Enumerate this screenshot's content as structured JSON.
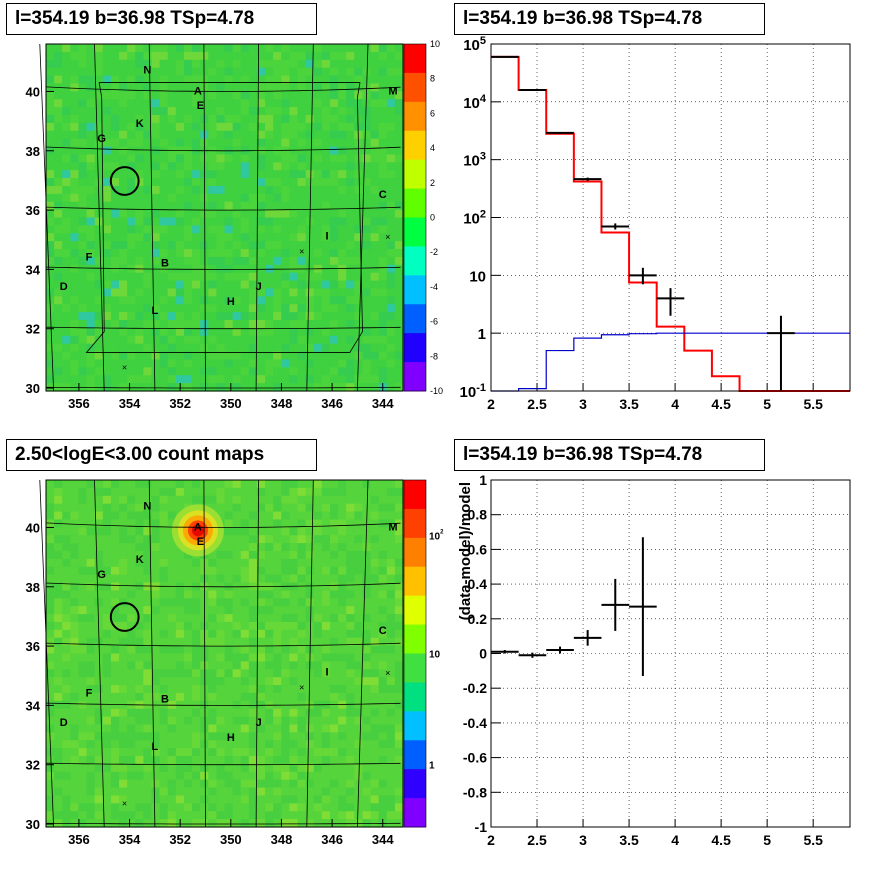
{
  "panels": {
    "tl": {
      "title": "l=354.19 b=36.98 TSp=4.78"
    },
    "tr": {
      "title": "l=354.19 b=36.98 TSp=4.78"
    },
    "bl": {
      "title": "2.50<logE<3.00 count maps"
    },
    "br": {
      "title": "l=354.19 b=36.98 TSp=4.78"
    }
  },
  "colors": {
    "map_bg": "#3fd13f",
    "data": "#000000",
    "model": "#ff0000",
    "source": "#0000cc"
  },
  "chart_data": [
    {
      "type": "heatmap",
      "name": "residual significance map",
      "x_ticks": [
        "356",
        "354",
        "352",
        "350",
        "348",
        "346",
        "344"
      ],
      "y_ticks": [
        "30",
        "32",
        "34",
        "36",
        "38",
        "40"
      ],
      "xlim": [
        357.3,
        343.2
      ],
      "ylim": [
        29.9,
        41.6
      ],
      "colorbar_ticks": [
        "10",
        "8",
        "6",
        "4",
        "2",
        "0",
        "-2",
        "-4",
        "-6",
        "-8",
        "-10"
      ],
      "colorbar_range": [
        -10,
        10
      ],
      "labels": [
        {
          "t": "N",
          "l": 353.3,
          "b": 40.6
        },
        {
          "t": "A",
          "l": 351.3,
          "b": 39.9
        },
        {
          "t": "E",
          "l": 351.2,
          "b": 39.4
        },
        {
          "t": "K",
          "l": 353.6,
          "b": 38.8
        },
        {
          "t": "G",
          "l": 355.1,
          "b": 38.3
        },
        {
          "t": "M",
          "l": 343.6,
          "b": 39.9
        },
        {
          "t": "C",
          "l": 344.0,
          "b": 36.4
        },
        {
          "t": "I",
          "l": 346.2,
          "b": 35.0
        },
        {
          "t": "F",
          "l": 355.6,
          "b": 34.3
        },
        {
          "t": "B",
          "l": 352.6,
          "b": 34.1
        },
        {
          "t": "D",
          "l": 356.6,
          "b": 33.3
        },
        {
          "t": "J",
          "l": 348.9,
          "b": 33.3
        },
        {
          "t": "H",
          "l": 350.0,
          "b": 32.8
        },
        {
          "t": "L",
          "l": 353.0,
          "b": 32.5
        }
      ],
      "crosses": [
        {
          "l": 347.2,
          "b": 34.6
        },
        {
          "l": 343.8,
          "b": 35.1
        },
        {
          "l": 354.2,
          "b": 30.7
        }
      ],
      "target_circle": {
        "l": 354.19,
        "b": 36.98,
        "r_deg": 0.55
      }
    },
    {
      "type": "line",
      "name": "counts spectrum",
      "xlim": [
        2.0,
        5.9
      ],
      "x_ticks": [
        "2",
        "2.5",
        "3",
        "3.5",
        "4",
        "4.5",
        "5",
        "5.5"
      ],
      "y_scale": "log",
      "ylim": [
        0.1,
        100000
      ],
      "y_ticks": [
        "10^-1",
        "1",
        "10",
        "10^2",
        "10^3",
        "10^4",
        "10^5"
      ],
      "bin_edges": [
        2.0,
        2.3,
        2.6,
        2.9,
        3.2,
        3.5,
        3.8,
        4.1,
        4.4,
        4.7,
        5.0,
        5.3,
        5.6,
        5.9
      ],
      "series": [
        {
          "name": "model",
          "values": [
            60000,
            16000,
            2800,
            420,
            55,
            7.5,
            1.3,
            0.5,
            0.18,
            0.1,
            0.1,
            0.1,
            0.1
          ]
        },
        {
          "name": "source",
          "values": [
            0.1,
            0.11,
            0.5,
            0.82,
            0.94,
            0.98,
            1,
            1,
            1,
            1,
            1,
            1,
            1
          ]
        }
      ],
      "data_points": [
        {
          "x": 2.15,
          "y": 60000,
          "xerr": 0.15,
          "ylo": 59000,
          "yhi": 61000
        },
        {
          "x": 2.45,
          "y": 16000,
          "xerr": 0.15,
          "ylo": 15800,
          "yhi": 16200
        },
        {
          "x": 2.75,
          "y": 2900,
          "xerr": 0.15,
          "ylo": 2800,
          "yhi": 3000
        },
        {
          "x": 3.05,
          "y": 460,
          "xerr": 0.15,
          "ylo": 430,
          "yhi": 490
        },
        {
          "x": 3.35,
          "y": 70,
          "xerr": 0.15,
          "ylo": 62,
          "yhi": 79
        },
        {
          "x": 3.65,
          "y": 10,
          "xerr": 0.15,
          "ylo": 7,
          "yhi": 13.5
        },
        {
          "x": 3.95,
          "y": 4,
          "xerr": 0.15,
          "ylo": 2,
          "yhi": 6
        },
        {
          "x": 5.15,
          "y": 1,
          "xerr": 0.15,
          "ylo": 0.1,
          "yhi": 2
        }
      ]
    },
    {
      "type": "heatmap",
      "name": "count map",
      "x_ticks": [
        "356",
        "354",
        "352",
        "350",
        "348",
        "346",
        "344"
      ],
      "y_ticks": [
        "30",
        "32",
        "34",
        "36",
        "38",
        "40"
      ],
      "xlim": [
        357.3,
        343.2
      ],
      "ylim": [
        29.9,
        41.6
      ],
      "colorbar_ticks": [
        "10^2",
        "10",
        "1"
      ],
      "colorbar_scale": "log",
      "labels": [
        {
          "t": "N",
          "l": 353.3,
          "b": 40.6
        },
        {
          "t": "A",
          "l": 351.3,
          "b": 39.9
        },
        {
          "t": "E",
          "l": 351.2,
          "b": 39.4
        },
        {
          "t": "K",
          "l": 353.6,
          "b": 38.8
        },
        {
          "t": "G",
          "l": 355.1,
          "b": 38.3
        },
        {
          "t": "M",
          "l": 343.6,
          "b": 39.9
        },
        {
          "t": "C",
          "l": 344.0,
          "b": 36.4
        },
        {
          "t": "I",
          "l": 346.2,
          "b": 35.0
        },
        {
          "t": "F",
          "l": 355.6,
          "b": 34.3
        },
        {
          "t": "B",
          "l": 352.6,
          "b": 34.1
        },
        {
          "t": "D",
          "l": 356.6,
          "b": 33.3
        },
        {
          "t": "J",
          "l": 348.9,
          "b": 33.3
        },
        {
          "t": "H",
          "l": 350.0,
          "b": 32.8
        },
        {
          "t": "L",
          "l": 353.0,
          "b": 32.5
        }
      ],
      "crosses": [
        {
          "l": 347.2,
          "b": 34.6
        },
        {
          "l": 343.8,
          "b": 35.1
        },
        {
          "l": 354.2,
          "b": 30.7
        }
      ],
      "target_circle": {
        "l": 354.19,
        "b": 36.98,
        "r_deg": 0.55
      },
      "bright_source": {
        "l": 351.3,
        "b": 39.9
      }
    },
    {
      "type": "scatter",
      "name": "residual fraction",
      "ylabel": "(data-model)/model",
      "xlim": [
        2.0,
        5.9
      ],
      "ylim": [
        -1,
        1
      ],
      "x_ticks": [
        "2",
        "2.5",
        "3",
        "3.5",
        "4",
        "4.5",
        "5",
        "5.5"
      ],
      "y_ticks": [
        "-1",
        "-0.8",
        "-0.6",
        "-0.4",
        "-0.2",
        "0",
        "0.2",
        "0.4",
        "0.6",
        "0.8",
        "1"
      ],
      "points": [
        {
          "x": 2.15,
          "y": 0.01,
          "xerr": 0.15,
          "yerr": 0.01
        },
        {
          "x": 2.45,
          "y": -0.01,
          "xerr": 0.15,
          "yerr": 0.015
        },
        {
          "x": 2.75,
          "y": 0.02,
          "xerr": 0.15,
          "yerr": 0.02
        },
        {
          "x": 3.05,
          "y": 0.09,
          "xerr": 0.15,
          "yerr": 0.045
        },
        {
          "x": 3.35,
          "y": 0.28,
          "xerr": 0.15,
          "yerr": 0.15
        },
        {
          "x": 3.65,
          "y": 0.27,
          "xerr": 0.15,
          "yerr": 0.4
        }
      ]
    }
  ]
}
